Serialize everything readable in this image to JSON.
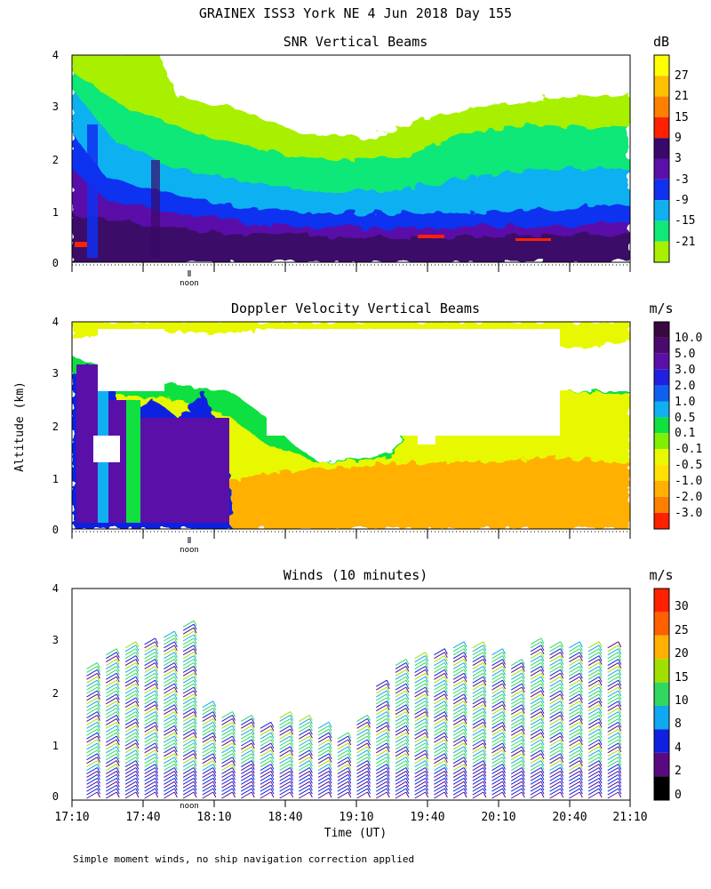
{
  "page": {
    "title": "GRAINEX ISS3 York NE   4 Jun 2018 Day 155",
    "footnote": "Simple moment winds, no ship navigation correction applied",
    "shared_ylabel": "Altitude (km)",
    "noon_label": "noon"
  },
  "chart_data": [
    {
      "type": "heatmap",
      "title": "SNR Vertical Beams",
      "ylabel": "Altitude (km)",
      "y_ticks": [
        "0",
        "1",
        "2",
        "3",
        "4"
      ],
      "ylim": [
        0,
        4
      ],
      "xlim": [
        "17:10",
        "21:10"
      ],
      "colorbar": {
        "unit": "dB",
        "labels": [
          "27",
          "21",
          "15",
          "9",
          "3",
          "-3",
          "-9",
          "-15",
          "-21"
        ],
        "colors": [
          "#ffff00",
          "#ffc000",
          "#ff8000",
          "#ff2000",
          "#3a0868",
          "#5a10a8",
          "#1030f0",
          "#10b0f0",
          "#10e878",
          "#a8f000"
        ]
      },
      "layers": [
        {
          "altitude_km_max": 0.6,
          "snr_db": 9
        },
        {
          "altitude_km_max": 1.0,
          "snr_db": 3
        },
        {
          "altitude_km_max": 1.4,
          "snr_db": -9
        },
        {
          "altitude_km_max": 2.2,
          "snr_db": -15
        },
        {
          "altitude_km_max": 4.0,
          "snr_db": -21
        }
      ]
    },
    {
      "type": "heatmap",
      "title": "Doppler Velocity Vertical Beams",
      "ylabel": "Altitude (km)",
      "y_ticks": [
        "0",
        "1",
        "2",
        "3",
        "4"
      ],
      "ylim": [
        0,
        4
      ],
      "xlim": [
        "17:10",
        "21:10"
      ],
      "colorbar": {
        "unit": "m/s",
        "labels": [
          "10.0",
          "5.0",
          "3.0",
          "2.0",
          "1.0",
          "0.5",
          "0.1",
          "-0.1",
          "-0.5",
          "-1.0",
          "-2.0",
          "-3.0"
        ],
        "colors": [
          "#3a0840",
          "#4a0a70",
          "#5a10a8",
          "#2020e0",
          "#1060f0",
          "#10b0f0",
          "#10e040",
          "#80f000",
          "#e8f800",
          "#ffe000",
          "#ffb000",
          "#ff8000",
          "#ff2000"
        ]
      }
    },
    {
      "type": "scatter",
      "title": "Winds (10 minutes)",
      "xlabel": "Time (UT)",
      "ylabel": "Altitude (km)",
      "x_ticks": [
        "17:10",
        "17:40",
        "18:10",
        "18:40",
        "19:10",
        "19:40",
        "20:10",
        "20:40",
        "21:10"
      ],
      "y_ticks": [
        "0",
        "1",
        "2",
        "3",
        "4"
      ],
      "ylim": [
        0,
        4
      ],
      "colorbar": {
        "unit": "m/s",
        "labels": [
          "30",
          "25",
          "20",
          "15",
          "10",
          "8",
          "4",
          "2",
          "0"
        ],
        "colors": [
          "#ff2000",
          "#ff6000",
          "#ffb000",
          "#a0e000",
          "#30d860",
          "#10a8f0",
          "#1020e0",
          "#5a0a80",
          "#000000"
        ]
      },
      "profiles_max_altitude_km": [
        2.5,
        2.8,
        2.9,
        3.0,
        3.1,
        3.3,
        1.8,
        1.6,
        1.5,
        1.4,
        1.6,
        1.5,
        1.4,
        1.2,
        1.5,
        2.2,
        2.6,
        2.7,
        2.8,
        2.9,
        2.9,
        2.8,
        2.6,
        3.0,
        2.9,
        2.9,
        2.9,
        2.9
      ]
    }
  ]
}
